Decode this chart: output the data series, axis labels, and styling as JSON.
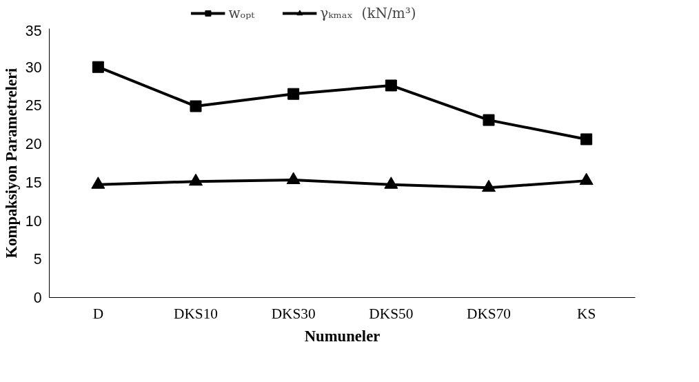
{
  "chart_data": {
    "type": "line",
    "xlabel": "Numuneler",
    "ylabel": "Kompaksiyon Parametreleri",
    "categories": [
      "D",
      "DKS10",
      "DKS30",
      "DKS50",
      "DKS70",
      "KS"
    ],
    "series": [
      {
        "name": "wₒₚₜ",
        "color": "#000000",
        "marker": "square",
        "values": [
          30,
          24.9,
          26.5,
          27.6,
          23.1,
          20.6
        ]
      },
      {
        "name": "γₖₘₐₓ  (kN/m³)",
        "color": "#000000",
        "marker": "triangle",
        "values": [
          14.7,
          15.1,
          15.3,
          14.7,
          14.3,
          15.2
        ]
      }
    ],
    "ylim": [
      0,
      35
    ],
    "yticks": [
      0,
      5,
      10,
      15,
      20,
      25,
      30,
      35
    ],
    "grid": false,
    "legend": "top",
    "line_style": "solid"
  }
}
